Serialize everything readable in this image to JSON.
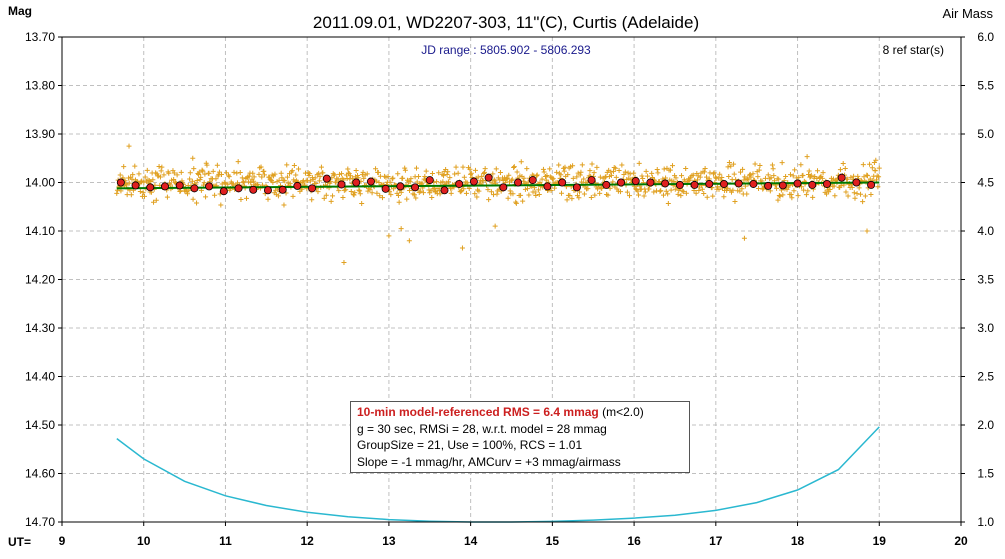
{
  "chart_data": {
    "type": "scatter",
    "title": "2011.09.01, WD2207-303, 11\"(C), Curtis (Adelaide)",
    "subtitle": "JD range : 5805.902 - 5806.293",
    "ref_stars": "8 ref star(s)",
    "ylabel_left": "Mag",
    "ylabel_right": "Air Mass",
    "xlabel": "UT=",
    "xlim": [
      9,
      20
    ],
    "ylim": [
      14.7,
      13.7
    ],
    "y2lim": [
      1.0,
      6.0
    ],
    "x_ticks": [
      "9",
      "10",
      "11",
      "12",
      "13",
      "14",
      "15",
      "16",
      "17",
      "18",
      "19",
      "20"
    ],
    "y_ticks": [
      "13.70",
      "13.80",
      "13.90",
      "14.00",
      "14.10",
      "14.20",
      "14.30",
      "14.40",
      "14.50",
      "14.60",
      "14.70"
    ],
    "y2_ticks": [
      "6.0",
      "5.5",
      "5.0",
      "4.5",
      "4.0",
      "3.5",
      "3.0",
      "2.5",
      "2.0",
      "1.5",
      "1.0"
    ],
    "grid": true,
    "colors": {
      "raw_points": "#e0a020",
      "binned_points": "#e02020",
      "model_line": "#007a00",
      "airmass_curve": "#2ab8d0",
      "grid": "#c0c0c0"
    },
    "series": [
      {
        "type": "line",
        "x": [
          9.67,
          19.0
        ],
        "y": [
          14.012,
          14.0
        ]
      },
      {
        "type": "scatter",
        "x": [
          9.72,
          9.9,
          10.08,
          10.26,
          10.44,
          10.62,
          10.8,
          10.98,
          11.16,
          11.34,
          11.52,
          11.7,
          11.88,
          12.06,
          12.24,
          12.42,
          12.6,
          12.78,
          12.96,
          13.14,
          13.32,
          13.5,
          13.68,
          13.86,
          14.04,
          14.22,
          14.4,
          14.58,
          14.76,
          14.94,
          15.12,
          15.3,
          15.48,
          15.66,
          15.84,
          16.02,
          16.2,
          16.38,
          16.56,
          16.74,
          16.92,
          17.1,
          17.28,
          17.46,
          17.64,
          17.82,
          18.0,
          18.18,
          18.36,
          18.54,
          18.72,
          18.9
        ],
        "y": [
          14.0,
          14.006,
          14.01,
          14.008,
          14.006,
          14.012,
          14.008,
          14.018,
          14.012,
          14.015,
          14.016,
          14.015,
          14.007,
          14.012,
          13.992,
          14.004,
          14.0,
          13.998,
          14.013,
          14.008,
          14.01,
          13.995,
          14.016,
          14.003,
          13.998,
          13.99,
          14.01,
          14.0,
          13.995,
          14.008,
          14.0,
          14.01,
          13.995,
          14.005,
          14.0,
          13.997,
          14.0,
          14.002,
          14.005,
          14.005,
          14.003,
          14.003,
          14.002,
          14.003,
          14.007,
          14.006,
          14.002,
          14.005,
          14.003,
          13.99,
          14.0,
          14.005
        ]
      },
      {
        "type": "line",
        "x": [
          9.67,
          10.0,
          10.5,
          11.0,
          11.5,
          12.0,
          12.5,
          13.0,
          13.5,
          14.0,
          14.5,
          15.0,
          15.5,
          16.0,
          16.5,
          17.0,
          17.5,
          18.0,
          18.5,
          19.0
        ],
        "y_airmass": [
          1.86,
          1.65,
          1.42,
          1.27,
          1.17,
          1.1,
          1.055,
          1.025,
          1.008,
          1.0,
          1.0,
          1.006,
          1.02,
          1.04,
          1.07,
          1.12,
          1.2,
          1.33,
          1.54,
          1.98
        ]
      },
      {
        "type": "scatter",
        "x_range": [
          9.67,
          19.0
        ],
        "center_y": 14.0,
        "count": 1100,
        "scatter_rms": 0.028,
        "outliers_x": [
          9.82,
          10.6,
          12.45,
          13.0,
          13.15,
          13.25,
          13.9,
          14.3,
          17.35,
          18.85,
          18.95
        ],
        "outliers_y": [
          13.925,
          13.95,
          14.165,
          14.11,
          14.095,
          14.12,
          14.135,
          14.09,
          14.115,
          14.1,
          13.975
        ]
      }
    ],
    "info_box": {
      "line1": "10-min model-referenced RMS = 6.4 mmag",
      "line1_suffix": " (m<2.0)",
      "line2": "g = 30 sec, RMSi = 28, w.r.t. model = 28 mmag",
      "line3": "GroupSize = 21, Use = 100%, RCS = 1.01",
      "line4": "Slope = -1 mmag/hr, AMCurv = +3 mmag/airmass"
    }
  }
}
